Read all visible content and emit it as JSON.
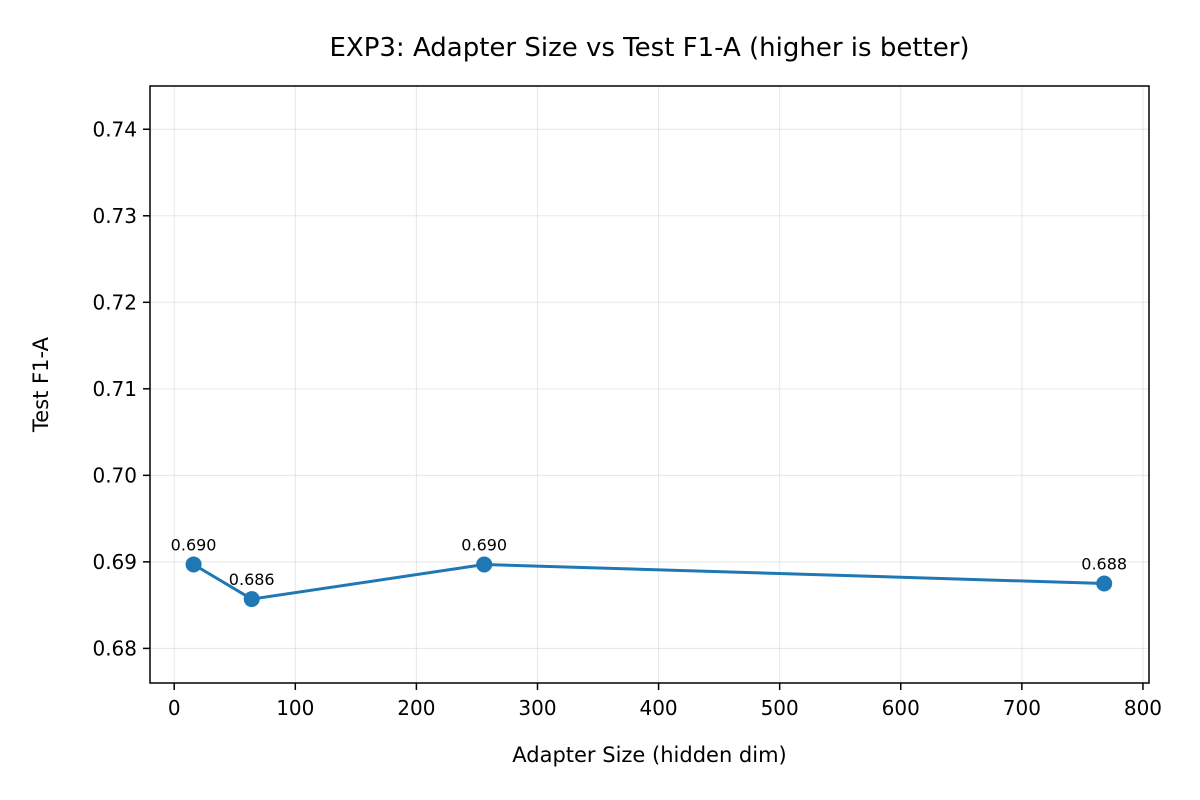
{
  "chart_data": {
    "type": "line",
    "title": "EXP3: Adapter Size vs Test F1-A (higher is better)",
    "xlabel": "Adapter Size (hidden dim)",
    "ylabel": "Test F1-A",
    "xlim": [
      -20,
      805
    ],
    "ylim": [
      0.676,
      0.745
    ],
    "xticks": [
      0,
      100,
      200,
      300,
      400,
      500,
      600,
      700,
      800
    ],
    "xtick_labels": [
      "0",
      "100",
      "200",
      "300",
      "400",
      "500",
      "600",
      "700",
      "800"
    ],
    "yticks": [
      0.68,
      0.69,
      0.7,
      0.71,
      0.72,
      0.73,
      0.74
    ],
    "ytick_labels": [
      "0.68",
      "0.69",
      "0.70",
      "0.71",
      "0.72",
      "0.73",
      "0.74"
    ],
    "grid": true,
    "series": [
      {
        "color": "#1f77b4",
        "x": [
          16,
          64,
          256,
          768
        ],
        "y": [
          0.6897,
          0.6857,
          0.6897,
          0.6875
        ],
        "labels": [
          "0.690",
          "0.686",
          "0.690",
          "0.688"
        ]
      }
    ]
  }
}
